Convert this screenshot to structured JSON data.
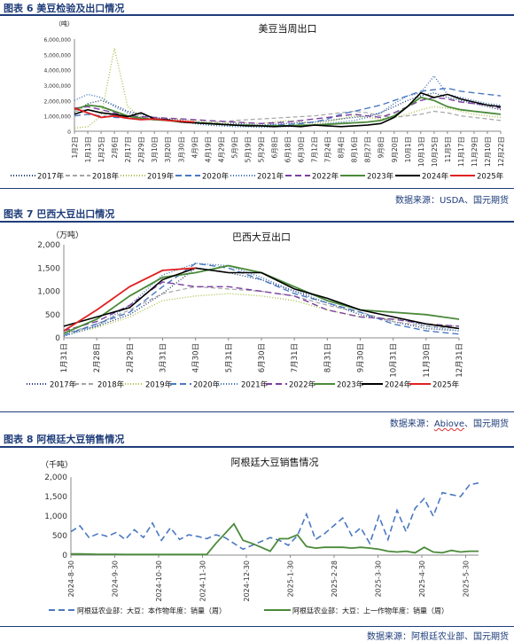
{
  "figures": [
    {
      "title": "图表 6 美豆检验及出口情况",
      "source": "数据来源：USDA、国元期货"
    },
    {
      "title": "图表 7 巴西大豆出口情况",
      "source_prefix": "数据来源：",
      "source_abiove": "Abiove",
      "source_suffix": "、国元期货"
    },
    {
      "title": "图表 8 阿根廷大豆销售情况",
      "source": "数据来源：阿根廷农业部、国元期货"
    }
  ],
  "chart_data": [
    {
      "type": "line",
      "title": "美豆当周出口",
      "unit_label": "（吨）",
      "ylim": [
        0,
        6000000
      ],
      "y_ticks": [
        "0",
        "1,000,000",
        "2,000,000",
        "3,000,000",
        "4,000,000",
        "5,000,000",
        "6,000,000"
      ],
      "x_labels": [
        "1月2日",
        "1月13日",
        "1月25日",
        "2月6日",
        "2月17日",
        "2月29日",
        "3月10日",
        "3月20日",
        "3月30日",
        "4月9日",
        "4月19日",
        "4月29日",
        "5月9日",
        "5月19日",
        "5月29日",
        "6月8日",
        "6月18日",
        "6月30日",
        "7月12日",
        "7月24日",
        "8月4日",
        "8月16日",
        "8月27日",
        "9月8日",
        "9月20日",
        "10月1日",
        "10月13日",
        "10月25日",
        "11月5日",
        "11月17日",
        "11月29日",
        "12月10日",
        "12月22日"
      ],
      "series": [
        {
          "name": "2017年",
          "color": "#1f3b73",
          "dash": "1,2",
          "values": [
            1.2,
            1.8,
            2.0,
            1.7,
            1.3,
            1.1,
            0.9,
            0.8,
            0.7,
            0.6,
            0.55,
            0.5,
            0.5,
            0.45,
            0.4,
            0.45,
            0.5,
            0.55,
            0.6,
            0.7,
            0.8,
            0.9,
            1.0,
            1.2,
            1.6,
            2.0,
            2.3,
            2.5,
            2.2,
            2.0,
            1.8,
            1.6,
            1.4
          ]
        },
        {
          "name": "2018年",
          "color": "#a5a5a5",
          "dash": "5,3",
          "values": [
            1.3,
            1.4,
            1.2,
            1.0,
            0.9,
            0.85,
            0.8,
            0.7,
            0.65,
            0.6,
            0.55,
            0.6,
            0.7,
            0.75,
            0.8,
            0.85,
            0.9,
            0.95,
            1.0,
            1.1,
            1.2,
            1.3,
            1.2,
            1.0,
            0.9,
            1.0,
            1.1,
            1.3,
            1.2,
            1.0,
            0.9,
            0.8,
            0.7
          ]
        },
        {
          "name": "2019年",
          "color": "#a9c24f",
          "dash": "1,2",
          "values": [
            0.2,
            0.3,
            1.0,
            5.4,
            1.6,
            0.9,
            0.8,
            0.7,
            0.8,
            0.7,
            0.6,
            0.5,
            0.6,
            0.55,
            0.5,
            0.6,
            0.7,
            0.6,
            0.5,
            0.6,
            0.8,
            1.0,
            0.9,
            0.8,
            0.9,
            1.1,
            1.4,
            1.6,
            1.5,
            1.3,
            1.1,
            1.0,
            0.9
          ]
        },
        {
          "name": "2020年",
          "color": "#4a78c2",
          "dash": "7,4",
          "values": [
            1.0,
            1.1,
            1.0,
            0.9,
            0.85,
            0.8,
            0.75,
            0.7,
            0.6,
            0.55,
            0.5,
            0.45,
            0.4,
            0.4,
            0.35,
            0.4,
            0.45,
            0.5,
            0.6,
            0.8,
            1.1,
            1.3,
            1.5,
            1.7,
            2.0,
            2.3,
            2.6,
            2.7,
            2.8,
            2.6,
            2.5,
            2.4,
            2.3
          ]
        },
        {
          "name": "2021年",
          "color": "#3a6fb5",
          "dash": "1,2",
          "values": [
            2.0,
            2.4,
            2.2,
            1.6,
            1.2,
            0.9,
            0.8,
            0.7,
            0.6,
            0.5,
            0.4,
            0.35,
            0.3,
            0.3,
            0.25,
            0.3,
            0.3,
            0.35,
            0.4,
            0.5,
            0.6,
            0.7,
            0.9,
            1.2,
            1.8,
            2.3,
            2.5,
            3.6,
            2.4,
            2.2,
            2.0,
            1.8,
            1.7
          ]
        },
        {
          "name": "2022年",
          "color": "#7b3fa0",
          "dash": "7,4",
          "values": [
            1.5,
            1.6,
            1.4,
            1.2,
            1.0,
            0.95,
            0.9,
            0.85,
            0.8,
            0.75,
            0.7,
            0.65,
            0.6,
            0.55,
            0.5,
            0.55,
            0.6,
            0.7,
            0.8,
            0.9,
            1.0,
            1.1,
            1.0,
            0.9,
            1.2,
            1.6,
            2.0,
            2.2,
            2.1,
            1.9,
            1.8,
            1.7,
            1.5
          ]
        },
        {
          "name": "2023年",
          "color": "#4a8a3a",
          "dash": "",
          "values": [
            1.4,
            1.7,
            1.6,
            1.3,
            1.0,
            0.85,
            0.75,
            0.7,
            0.6,
            0.55,
            0.5,
            0.45,
            0.4,
            0.4,
            0.35,
            0.35,
            0.35,
            0.4,
            0.4,
            0.45,
            0.5,
            0.55,
            0.6,
            0.7,
            1.0,
            1.6,
            2.2,
            2.0,
            1.6,
            1.4,
            1.3,
            1.2,
            1.1
          ]
        },
        {
          "name": "2024年",
          "color": "#000000",
          "dash": "",
          "values": [
            1.1,
            1.4,
            1.2,
            1.1,
            0.95,
            1.2,
            0.8,
            0.75,
            0.6,
            0.55,
            0.5,
            0.45,
            0.4,
            0.35,
            0.35,
            0.3,
            0.35,
            0.3,
            0.4,
            0.35,
            0.3,
            0.35,
            0.4,
            0.5,
            0.9,
            1.6,
            2.5,
            2.2,
            2.4,
            2.1,
            1.9,
            1.7,
            1.6
          ]
        },
        {
          "name": "2025年",
          "color": "#e02020",
          "dash": "",
          "values": [
            1.5,
            1.2,
            0.9,
            1.0,
            0.85,
            0.75,
            0.8,
            0.7,
            0.65,
            0.6,
            null,
            null,
            null,
            null,
            null,
            null,
            null,
            null,
            null,
            null,
            null,
            null,
            null,
            null,
            null,
            null,
            null,
            null,
            null,
            null,
            null,
            null,
            null
          ]
        }
      ]
    },
    {
      "type": "line",
      "title": "巴西大豆出口",
      "unit_label": "（万吨）",
      "ylim": [
        0,
        2000
      ],
      "y_ticks": [
        "0",
        "500",
        "1,000",
        "1,500",
        "2,000"
      ],
      "x_labels": [
        "1月31日",
        "2月28日",
        "2月29日",
        "3月31日",
        "4月30日",
        "5月31日",
        "6月30日",
        "7月31日",
        "8月31日",
        "9月30日",
        "10月31日",
        "11月30日",
        "12月31日"
      ],
      "series": [
        {
          "name": "2017年",
          "color": "#1f3b73",
          "dash": "1,2",
          "values": [
            100,
            250,
            500,
            950,
            1500,
            1400,
            1250,
            1000,
            750,
            500,
            350,
            200,
            150
          ]
        },
        {
          "name": "2018年",
          "color": "#a5a5a5",
          "dash": "5,3",
          "values": [
            80,
            300,
            600,
            950,
            1100,
            1050,
            1000,
            900,
            700,
            550,
            350,
            250,
            200
          ]
        },
        {
          "name": "2019年",
          "color": "#a9c24f",
          "dash": "1,2",
          "values": [
            60,
            220,
            450,
            800,
            900,
            950,
            900,
            800,
            600,
            450,
            400,
            300,
            250
          ]
        },
        {
          "name": "2020年",
          "color": "#4a78c2",
          "dash": "7,4",
          "values": [
            50,
            300,
            550,
            1100,
            1600,
            1500,
            1250,
            950,
            750,
            550,
            300,
            150,
            80
          ]
        },
        {
          "name": "2021年",
          "color": "#3a6fb5",
          "dash": "1,2",
          "values": [
            30,
            250,
            700,
            1350,
            1600,
            1550,
            1300,
            1000,
            850,
            600,
            450,
            250,
            150
          ]
        },
        {
          "name": "2022年",
          "color": "#7b3fa0",
          "dash": "7,4",
          "values": [
            150,
            350,
            700,
            1200,
            1100,
            1100,
            1000,
            900,
            600,
            450,
            400,
            300,
            250
          ]
        },
        {
          "name": "2023年",
          "color": "#4a8a3a",
          "dash": "",
          "values": [
            100,
            400,
            900,
            1300,
            1400,
            1550,
            1400,
            1100,
            800,
            600,
            550,
            500,
            400
          ]
        },
        {
          "name": "2024年",
          "color": "#000000",
          "dash": "",
          "values": [
            250,
            450,
            650,
            1250,
            1500,
            1400,
            1400,
            1050,
            850,
            600,
            450,
            300,
            200
          ]
        },
        {
          "name": "2025年",
          "color": "#e02020",
          "dash": "",
          "values": [
            150,
            600,
            1100,
            1450,
            1500,
            null,
            null,
            null,
            null,
            null,
            null,
            null,
            null
          ]
        }
      ]
    },
    {
      "type": "line",
      "title": "阿根廷大豆销售情况",
      "unit_label": "（千吨）",
      "ylim": [
        0,
        2000
      ],
      "y_ticks": [
        "0",
        "500",
        "1,000",
        "1,500",
        "2,000"
      ],
      "x_labels": [
        "2024-8-30",
        "2024-9-30",
        "2024-10-30",
        "2024-11-30",
        "2024-12-30",
        "2025-1-30",
        "2025-2-28",
        "2025-3-30",
        "2025-4-30",
        "2025-5-30"
      ],
      "series": [
        {
          "name": "阿根廷农业部：大豆：本作物年度：销量（周）",
          "color": "#4a78c2",
          "dash": "7,4",
          "values": [
            600,
            750,
            450,
            550,
            480,
            580,
            400,
            650,
            450,
            820,
            380,
            700,
            400,
            520,
            480,
            420,
            520,
            450,
            300,
            150,
            250,
            350,
            450,
            380,
            250,
            500,
            1050,
            400,
            550,
            750,
            950,
            500,
            700,
            300,
            1000,
            400,
            1150,
            600,
            1200,
            1450,
            1000,
            1600,
            1550,
            1500,
            1800,
            1850
          ]
        },
        {
          "name": "阿根廷农业部：大豆：上一作物年度：销量（周）",
          "color": "#4a8a3a",
          "dash": "",
          "values": [
            30,
            30,
            25,
            20,
            20,
            20,
            15,
            15,
            15,
            15,
            15,
            15,
            15,
            15,
            15,
            15,
            300,
            550,
            800,
            380,
            300,
            200,
            100,
            420,
            420,
            520,
            220,
            180,
            200,
            200,
            200,
            180,
            200,
            180,
            150,
            100,
            80,
            100,
            60,
            200,
            80,
            60,
            120,
            80,
            100,
            100
          ]
        }
      ]
    }
  ]
}
